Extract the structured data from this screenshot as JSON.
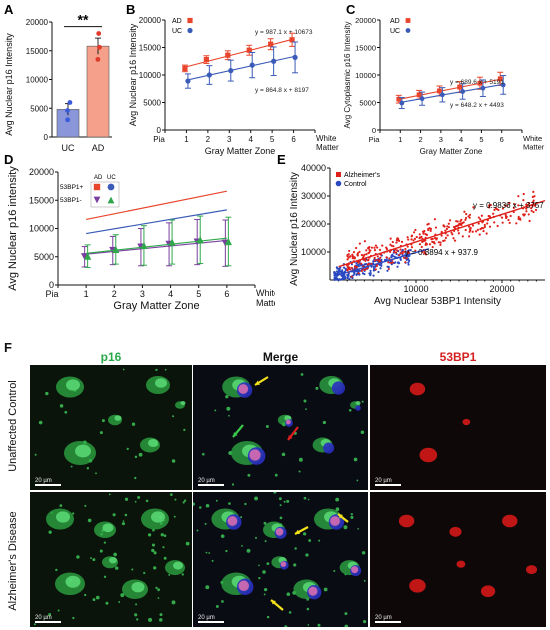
{
  "panels": {
    "A": "A",
    "B": "B",
    "C": "C",
    "D": "D",
    "E": "E",
    "F": "F"
  },
  "chart_data": [
    {
      "id": "A",
      "type": "bar",
      "categories": [
        "UC",
        "AD"
      ],
      "values": [
        4800,
        15800
      ],
      "errors": [
        1000,
        1400
      ],
      "points": [
        [
          3000,
          4600,
          6000
        ],
        [
          13500,
          15600,
          18000
        ]
      ],
      "colors": [
        "#8b95d9",
        "#f4a08a"
      ],
      "point_colors": [
        "#3a5bd9",
        "#e03a2a"
      ],
      "ylabel": "Avg Nuclear p16 Intensity",
      "ylim": [
        0,
        20000
      ],
      "yticks": [
        "0",
        "5000",
        "10000",
        "15000",
        "20000"
      ],
      "significance": "**"
    },
    {
      "id": "B",
      "type": "line",
      "x": [
        1,
        2,
        3,
        4,
        5,
        6
      ],
      "xticks": [
        "Pia",
        "1",
        "2",
        "3",
        "4",
        "5",
        "6",
        "White Matter"
      ],
      "xlabel": "Gray Matter Zone",
      "ylabel": "Avg Nuclear p16 Intensity",
      "ylim": [
        0,
        20000
      ],
      "yticks": [
        "0",
        "5000",
        "10000",
        "15000",
        "20000"
      ],
      "series": [
        {
          "name": "AD",
          "color": "#e8452c",
          "marker": "square",
          "values": [
            11200,
            12800,
            13600,
            14500,
            15600,
            16400
          ],
          "errors": [
            600,
            700,
            800,
            900,
            1000,
            1200
          ]
        },
        {
          "name": "UC",
          "color": "#3a5bb8",
          "marker": "circle",
          "values": [
            8900,
            10000,
            10800,
            11800,
            12500,
            13200
          ],
          "errors": [
            1300,
            1700,
            1900,
            2300,
            2600,
            2800
          ]
        }
      ],
      "equations": [
        "y = 987.1 x + 10673",
        "y = 864.8 x + 8197"
      ]
    },
    {
      "id": "C",
      "type": "line",
      "x": [
        1,
        2,
        3,
        4,
        5,
        6
      ],
      "xticks": [
        "Pia",
        "1",
        "2",
        "3",
        "4",
        "5",
        "6",
        "White Matter"
      ],
      "xlabel": "Gray Matter Zone",
      "ylabel": "Avg Cytoplasmic p16 Intensity",
      "ylim": [
        0,
        20000
      ],
      "yticks": [
        "0",
        "5000",
        "10000",
        "15000",
        "20000"
      ],
      "series": [
        {
          "name": "AD",
          "color": "#e8452c",
          "marker": "square",
          "values": [
            5600,
            6400,
            7100,
            7800,
            8500,
            9300
          ],
          "errors": [
            700,
            800,
            900,
            1000,
            1100,
            1200
          ]
        },
        {
          "name": "UC",
          "color": "#3a5bb8",
          "marker": "circle",
          "values": [
            4900,
            5700,
            6400,
            7000,
            7600,
            8200
          ],
          "errors": [
            1000,
            1200,
            1300,
            1400,
            1500,
            1700
          ]
        }
      ],
      "equations": [
        "y = 689.6 x + 5191",
        "y = 648.2 x + 4493"
      ]
    },
    {
      "id": "D",
      "type": "line",
      "x": [
        1,
        2,
        3,
        4,
        5,
        6
      ],
      "xticks": [
        "Pia",
        "1",
        "2",
        "3",
        "4",
        "5",
        "6",
        "White Matter"
      ],
      "xlabel": "Gray Matter Zone",
      "ylabel": "Avg Nuclear p16 intensity",
      "ylim": [
        0,
        20000
      ],
      "yticks": [
        "0",
        "5000",
        "10000",
        "15000",
        "20000"
      ],
      "legend": {
        "col_ad": "AD",
        "col_uc": "UC",
        "row_pos": "53BP1+",
        "row_neg": "53BP1-"
      },
      "reference_lines": [
        {
          "name": "AD 53BP1+",
          "color": "#e8452c",
          "values": [
            11600,
            16600
          ]
        },
        {
          "name": "UC 53BP1+",
          "color": "#3a5bb8",
          "values": [
            9100,
            13300
          ]
        }
      ],
      "series": [
        {
          "name": "AD 53BP1-",
          "color": "#7a3fa0",
          "marker": "triangle-down",
          "values": [
            5000,
            6100,
            6700,
            7200,
            7600,
            7400
          ],
          "errors": [
            1800,
            2500,
            3300,
            3800,
            4000,
            4100
          ]
        },
        {
          "name": "UC 53BP1-",
          "color": "#2ea84a",
          "marker": "triangle-up",
          "values": [
            5100,
            6300,
            7000,
            7600,
            8000,
            7700
          ],
          "errors": [
            2000,
            2600,
            3500,
            3900,
            4200,
            4300
          ]
        }
      ]
    },
    {
      "id": "E",
      "type": "scatter",
      "xlabel": "Avg Nuclear 53BP1 Intensity",
      "ylabel": "Avg Nuclear p16 Intensity",
      "xlim": [
        0,
        25000
      ],
      "ylim": [
        0,
        40000
      ],
      "xticks": [
        "10000",
        "20000"
      ],
      "yticks": [
        "10000",
        "20000",
        "30000",
        "40000"
      ],
      "series": [
        {
          "name": "Alzheimer's",
          "color": "#e0201a",
          "slope": 0.9836,
          "intercept": 3757
        },
        {
          "name": "Control",
          "color": "#2a48c0",
          "slope": 0.8894,
          "intercept": 937.9
        }
      ],
      "equations": [
        "y = 0.9836 x + 3757",
        "y = 0.8894 x + 937.9"
      ]
    }
  ],
  "micrographs": {
    "columns": [
      "p16",
      "Merge",
      "53BP1"
    ],
    "column_colors": [
      "#2aa84a",
      "#111111",
      "#d42020"
    ],
    "rows": [
      "Unaffected Control",
      "Alzheimer's Disease"
    ],
    "scale_bar": "20 µm"
  }
}
